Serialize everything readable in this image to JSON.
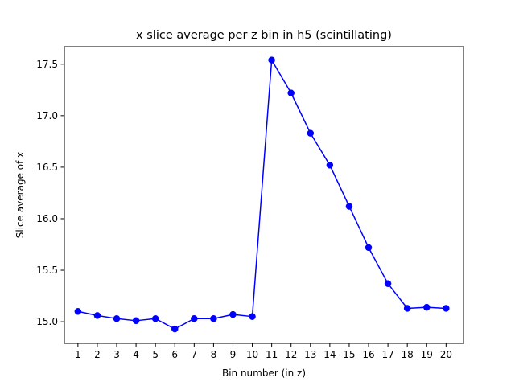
{
  "chart_data": {
    "type": "line",
    "title": "x slice average per z bin in h5 (scintillating)",
    "xlabel": "Bin number (in z)",
    "ylabel": "Slice average of x",
    "x": [
      1,
      2,
      3,
      4,
      5,
      6,
      7,
      8,
      9,
      10,
      11,
      12,
      13,
      14,
      15,
      16,
      17,
      18,
      19,
      20
    ],
    "series": [
      {
        "name": "x slice average",
        "color": "#0000ff",
        "marker": "circle",
        "values": [
          15.1,
          15.06,
          15.03,
          15.01,
          15.03,
          14.93,
          15.03,
          15.03,
          15.07,
          15.05,
          17.54,
          17.22,
          16.83,
          16.52,
          16.12,
          15.72,
          15.37,
          15.13,
          15.14,
          15.13
        ]
      }
    ],
    "xlim": [
      0.3,
      20.9
    ],
    "ylim": [
      14.79,
      17.67
    ],
    "xticks": [
      1,
      2,
      3,
      4,
      5,
      6,
      7,
      8,
      9,
      10,
      11,
      12,
      13,
      14,
      15,
      16,
      17,
      18,
      19,
      20
    ],
    "xtick_labels": [
      "1",
      "2",
      "3",
      "4",
      "5",
      "6",
      "7",
      "8",
      "9",
      "10",
      "11",
      "12",
      "13",
      "14",
      "15",
      "16",
      "17",
      "18",
      "19",
      "20"
    ],
    "yticks": [
      15.0,
      15.5,
      16.0,
      16.5,
      17.0,
      17.5
    ],
    "ytick_labels": [
      "15.0",
      "15.5",
      "16.0",
      "16.5",
      "17.0",
      "17.5"
    ],
    "grid": false,
    "legend": "none"
  }
}
